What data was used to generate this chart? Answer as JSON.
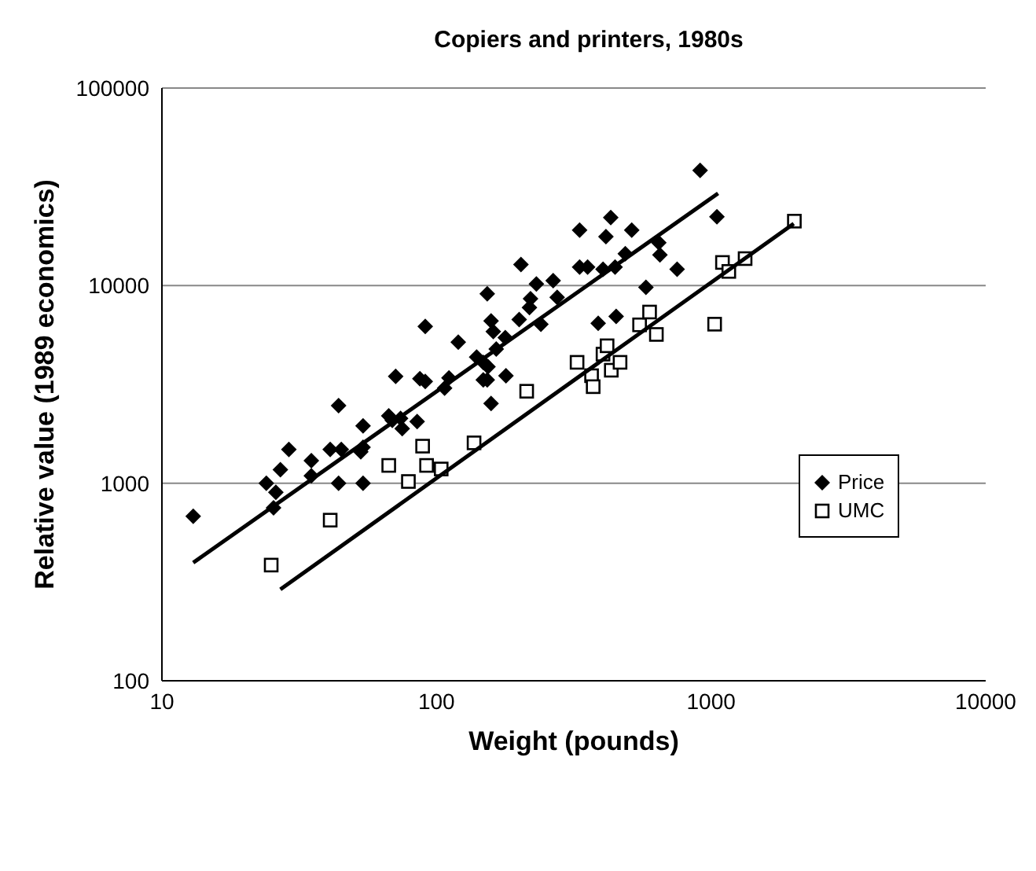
{
  "chart_data": {
    "type": "scatter",
    "title": "Copiers and printers, 1980s",
    "xlabel": "Weight (pounds)",
    "ylabel": "Relative value (1989 economics)",
    "log": "xy",
    "xlim": [
      10,
      10000
    ],
    "xticks": [
      10,
      100,
      1000,
      10000
    ],
    "ylim": [
      100,
      100000
    ],
    "yticks": [
      100,
      1000,
      10000,
      100000
    ],
    "grid": "y",
    "legend": "right",
    "series": [
      {
        "name": "Price",
        "marker": "diamond",
        "color": "#000000",
        "x": [
          13,
          24,
          26,
          27,
          25.5,
          29,
          35,
          35,
          41,
          44,
          44,
          45,
          53,
          54,
          54,
          54,
          67,
          71,
          69,
          74,
          75,
          85,
          87,
          91,
          91,
          107,
          111,
          120,
          140,
          148,
          153,
          158,
          153,
          148,
          154,
          158,
          161,
          165,
          178,
          179,
          200,
          203,
          218,
          220,
          231,
          240,
          266,
          275,
          332,
          332,
          355,
          388,
          404,
          414,
          431,
          447,
          451,
          487,
          514,
          579,
          645,
          651,
          752,
          912,
          1050
        ],
        "values": [
          680,
          1000,
          900,
          1170,
          750,
          1480,
          1300,
          1090,
          1480,
          2470,
          1000,
          1480,
          1440,
          1950,
          1520,
          1000,
          2190,
          3470,
          2080,
          2130,
          1890,
          2050,
          3380,
          3270,
          6220,
          3030,
          3410,
          5180,
          4350,
          3330,
          3330,
          2530,
          9100,
          4090,
          3890,
          6620,
          5850,
          4780,
          5460,
          3500,
          6730,
          12800,
          7740,
          8590,
          10200,
          6380,
          10600,
          8730,
          19100,
          12400,
          12400,
          6450,
          12100,
          17700,
          22100,
          12400,
          6980,
          14500,
          19100,
          9800,
          16500,
          14300,
          12100,
          38300,
          22300
        ]
      },
      {
        "name": "UMC",
        "marker": "square",
        "color": "#000000",
        "x": [
          25,
          41,
          67,
          79,
          89,
          92,
          104,
          137,
          213,
          325,
          367,
          372,
          404,
          418,
          433,
          466,
          549,
          597,
          632,
          1030,
          1100,
          1160,
          1330,
          2010
        ],
        "values": [
          385,
          650,
          1230,
          1020,
          1540,
          1230,
          1180,
          1600,
          2920,
          4090,
          3500,
          3080,
          4500,
          4960,
          3730,
          4090,
          6330,
          7350,
          5660,
          6380,
          13100,
          11800,
          13700,
          21200
        ]
      },
      {
        "type": "line",
        "color": "#000000",
        "x": [
          13,
          1060
        ],
        "values": [
          396,
          29300
        ]
      },
      {
        "type": "line",
        "color": "#000000",
        "x": [
          27,
          2000
        ],
        "values": [
          290,
          20600
        ]
      }
    ]
  }
}
